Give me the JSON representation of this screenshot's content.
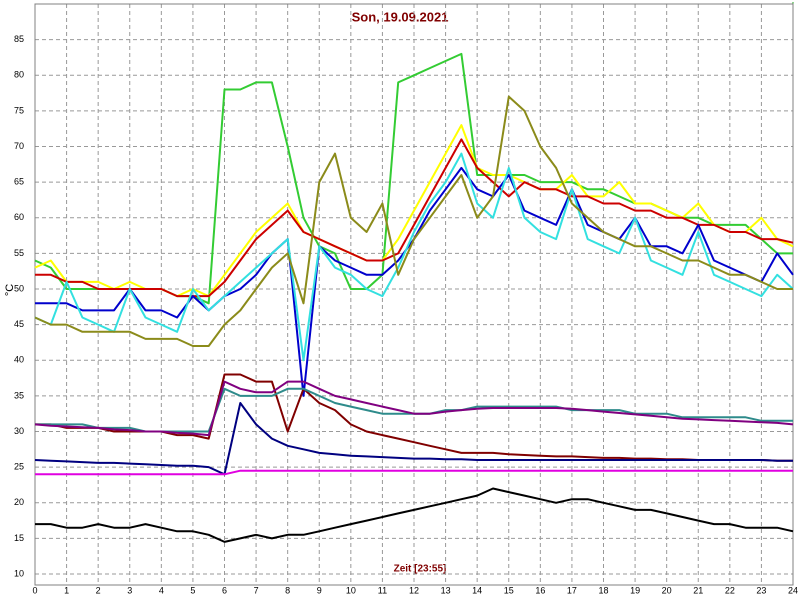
{
  "chart_data": {
    "type": "line",
    "title": "Son, 19.09.2021",
    "x_label": "Zeit [23:55]",
    "y_label": "°C",
    "x": [
      0,
      0.5,
      1,
      1.5,
      2,
      2.5,
      3,
      3.5,
      4,
      4.5,
      5,
      5.5,
      6,
      6.5,
      7,
      7.5,
      8,
      8.5,
      9,
      9.5,
      10,
      10.5,
      11,
      11.5,
      12,
      12.5,
      13,
      13.5,
      14,
      14.5,
      15,
      15.5,
      16,
      16.5,
      17,
      17.5,
      18,
      18.5,
      19,
      19.5,
      20,
      20.5,
      21,
      21.5,
      22,
      22.5,
      23,
      23.5,
      24
    ],
    "xlim": [
      0,
      24
    ],
    "xticks": [
      0,
      1,
      2,
      3,
      4,
      5,
      6,
      7,
      8,
      9,
      10,
      11,
      12,
      13,
      14,
      15,
      16,
      17,
      18,
      19,
      20,
      21,
      22,
      23,
      24
    ],
    "ylim": [
      10,
      90
    ],
    "yticks": [
      10,
      15,
      20,
      25,
      30,
      35,
      40,
      45,
      50,
      55,
      60,
      65,
      70,
      75,
      80,
      85
    ],
    "grid": true,
    "series": [
      {
        "color": "#33cc33",
        "values": [
          54,
          53,
          50,
          50,
          50,
          50,
          50,
          50,
          50,
          49,
          49,
          48,
          78,
          78,
          79,
          79,
          70,
          60,
          56,
          55,
          50,
          50,
          52,
          79,
          80,
          81,
          82,
          83,
          66,
          66,
          66,
          66,
          65,
          65,
          65,
          64,
          64,
          63,
          62,
          62,
          61,
          60,
          60,
          59,
          59,
          59,
          57,
          55,
          55
        ]
      },
      {
        "color": "#ffff00",
        "values": [
          53,
          54,
          51,
          51,
          51,
          50,
          51,
          50,
          50,
          49,
          50,
          49,
          52,
          55,
          58,
          60,
          62,
          58,
          57,
          56,
          55,
          54,
          54,
          57,
          61,
          65,
          69,
          73,
          67,
          66,
          66,
          65,
          64,
          64,
          66,
          63,
          63,
          65,
          62,
          62,
          61,
          60,
          62,
          59,
          58,
          58,
          60,
          57,
          56
        ]
      },
      {
        "color": "#cc0000",
        "values": [
          52,
          52,
          51,
          51,
          50,
          50,
          50,
          50,
          50,
          49,
          49,
          49,
          51,
          54,
          57,
          59,
          61,
          58,
          57,
          56,
          55,
          54,
          54,
          55,
          59,
          63,
          67,
          71,
          67,
          65,
          63,
          65,
          64,
          64,
          63,
          63,
          62,
          62,
          61,
          61,
          60,
          60,
          59,
          59,
          58,
          58,
          57,
          57,
          56.5
        ]
      },
      {
        "color": "#0000cc",
        "values": [
          48,
          48,
          48,
          47,
          47,
          47,
          50,
          47,
          47,
          46,
          49,
          47,
          49,
          50,
          52,
          55,
          57,
          35,
          56,
          54,
          53,
          52,
          52,
          54,
          57,
          61,
          64,
          67,
          64,
          63,
          66,
          61,
          60,
          59,
          64,
          59,
          58,
          57,
          60,
          56,
          56,
          55,
          59,
          54,
          53,
          52,
          51,
          55,
          52
        ]
      },
      {
        "color": "#33e0e0",
        "values": [
          46,
          45,
          51,
          46,
          45,
          44,
          50,
          46,
          45,
          44,
          50,
          47,
          49,
          51,
          53,
          55,
          57,
          40,
          56,
          53,
          52,
          50,
          49,
          53,
          58,
          62,
          65,
          69,
          62,
          60,
          67,
          60,
          58,
          57,
          64,
          57,
          56,
          55,
          60,
          54,
          53,
          52,
          58,
          52,
          51,
          50,
          49,
          52,
          50
        ]
      },
      {
        "color": "#8b8b1a",
        "values": [
          46,
          45,
          45,
          44,
          44,
          44,
          44,
          43,
          43,
          43,
          42,
          42,
          45,
          47,
          50,
          53,
          55,
          48,
          65,
          69,
          60,
          58,
          62,
          52,
          57,
          60,
          63,
          66,
          60,
          63,
          77,
          75,
          70,
          67,
          62,
          60,
          58,
          57,
          56,
          56,
          55,
          54,
          54,
          53,
          52,
          52,
          51,
          50,
          50
        ]
      },
      {
        "color": "#800000",
        "values": [
          31,
          31,
          30.5,
          30.5,
          30.5,
          30,
          30,
          30,
          30,
          29.5,
          29.5,
          29,
          38,
          38,
          37,
          37,
          30,
          36,
          34,
          33,
          31,
          30,
          29.5,
          29,
          28.5,
          28,
          27.5,
          27,
          27,
          27,
          26.8,
          26.7,
          26.6,
          26.5,
          26.5,
          26.4,
          26.3,
          26.3,
          26.2,
          26.2,
          26.1,
          26.1,
          26,
          26,
          26,
          26,
          26,
          25.9,
          25.9
        ]
      },
      {
        "color": "#2e8b8b",
        "values": [
          31,
          31,
          31,
          31,
          30.5,
          30.5,
          30.5,
          30,
          30,
          30,
          30,
          30,
          36,
          35,
          35,
          35,
          36,
          36,
          35,
          34,
          33.5,
          33,
          32.5,
          32.5,
          32.5,
          32.5,
          33,
          33,
          33.5,
          33.5,
          33.5,
          33.5,
          33.5,
          33.5,
          33,
          33,
          33,
          33,
          32.5,
          32.5,
          32.5,
          32,
          32,
          32,
          32,
          32,
          31.5,
          31.5,
          31.5
        ]
      },
      {
        "color": "#800080",
        "values": [
          31,
          30.8,
          30.7,
          30.6,
          30.5,
          30.3,
          30.2,
          30,
          30,
          29.8,
          29.7,
          29.5,
          37,
          36,
          35.5,
          35.5,
          37,
          37,
          36,
          35,
          34.5,
          34,
          33.5,
          33,
          32.5,
          32.5,
          32.8,
          33,
          33.2,
          33.3,
          33.3,
          33.3,
          33.3,
          33.3,
          33.2,
          33,
          32.8,
          32.6,
          32.4,
          32.2,
          32,
          31.8,
          31.7,
          31.6,
          31.5,
          31.4,
          31.3,
          31.2,
          31
        ]
      },
      {
        "color": "#000080",
        "values": [
          26,
          25.9,
          25.8,
          25.7,
          25.6,
          25.6,
          25.5,
          25.4,
          25.3,
          25.2,
          25.2,
          25,
          24,
          34,
          31,
          29,
          28,
          27.5,
          27,
          26.8,
          26.6,
          26.5,
          26.4,
          26.3,
          26.2,
          26.2,
          26.1,
          26.1,
          26,
          26,
          26,
          26,
          26,
          26,
          26,
          26,
          26,
          26,
          26,
          26,
          26,
          26,
          26,
          26,
          26,
          26,
          26,
          25.9,
          25.9
        ]
      },
      {
        "color": "#e000e0",
        "values": [
          24,
          24,
          24,
          24,
          24,
          24,
          24,
          24,
          24,
          24,
          24,
          24,
          24,
          24.5,
          24.5,
          24.5,
          24.5,
          24.5,
          24.5,
          24.5,
          24.5,
          24.5,
          24.5,
          24.5,
          24.5,
          24.5,
          24.5,
          24.5,
          24.5,
          24.5,
          24.5,
          24.5,
          24.5,
          24.5,
          24.5,
          24.5,
          24.5,
          24.5,
          24.5,
          24.5,
          24.5,
          24.5,
          24.5,
          24.5,
          24.5,
          24.5,
          24.5,
          24.5,
          24.5
        ]
      },
      {
        "color": "#000000",
        "values": [
          17,
          17,
          16.5,
          16.5,
          17,
          16.5,
          16.5,
          17,
          16.5,
          16,
          16,
          15.5,
          14.5,
          15,
          15.5,
          15,
          15.5,
          15.5,
          16,
          16.5,
          17,
          17.5,
          18,
          18.5,
          19,
          19.5,
          20,
          20.5,
          21,
          22,
          21.5,
          21,
          20.5,
          20,
          20.5,
          20.5,
          20,
          19.5,
          19,
          19,
          18.5,
          18,
          17.5,
          17,
          17,
          16.5,
          16.5,
          16.5,
          16
        ]
      }
    ]
  }
}
